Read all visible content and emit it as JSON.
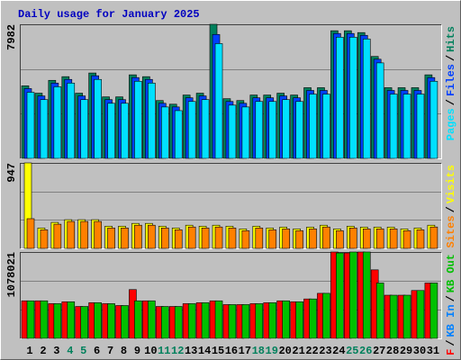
{
  "chart_data": [
    {
      "type": "bar",
      "title": "Daily usage for January 2025",
      "ylim": [
        0,
        7982
      ],
      "yticks": [
        7982
      ],
      "grid": true,
      "draw_order": "reverse",
      "series": [
        {
          "name": "Pages",
          "color": "#00e0ff",
          "values": [
            3936,
            3499,
            4264,
            4483,
            3499,
            4701,
            3280,
            3280,
            4592,
            4483,
            3061,
            2843,
            3389,
            3499,
            6834,
            3171,
            3061,
            3389,
            3389,
            3499,
            3389,
            3827,
            3827,
            7216,
            7216,
            7107,
            5685,
            3827,
            3827,
            3827,
            4592
          ]
        },
        {
          "name": "Files",
          "color": "#0040ff",
          "values": [
            4155,
            3718,
            4483,
            4702,
            3718,
            4920,
            3499,
            3499,
            4811,
            4702,
            3280,
            3062,
            3608,
            3718,
            7378,
            3390,
            3280,
            3608,
            3608,
            3718,
            3608,
            4046,
            4046,
            7435,
            7435,
            7326,
            5904,
            4046,
            4046,
            4046,
            4811
          ]
        },
        {
          "name": "Hits",
          "color": "#00805c",
          "values": [
            4319,
            3882,
            4647,
            4866,
            3882,
            5084,
            3663,
            3663,
            4975,
            4866,
            3444,
            3226,
            3772,
            3882,
            7982,
            3554,
            3444,
            3772,
            3772,
            3882,
            3772,
            4210,
            4210,
            7599,
            7599,
            7490,
            6068,
            4210,
            4210,
            4210,
            4975
          ]
        }
      ]
    },
    {
      "type": "bar",
      "ylim": [
        0,
        947
      ],
      "yticks": [
        947
      ],
      "grid": true,
      "draw_order": "reverse",
      "series": [
        {
          "name": "Sites",
          "color": "#ff8000",
          "values": [
            329,
            206,
            268,
            298,
            298,
            298,
            226,
            226,
            257,
            257,
            226,
            206,
            237,
            226,
            237,
            226,
            196,
            226,
            206,
            216,
            196,
            216,
            237,
            196,
            226,
            216,
            216,
            216,
            196,
            206,
            237
          ]
        },
        {
          "name": "Visits",
          "color": "#ffff00",
          "values": [
            947,
            226,
            288,
            318,
            318,
            318,
            246,
            246,
            277,
            277,
            246,
            226,
            257,
            246,
            257,
            246,
            216,
            246,
            226,
            236,
            216,
            236,
            257,
            216,
            246,
            236,
            236,
            236,
            216,
            226,
            257
          ]
        }
      ]
    },
    {
      "type": "bar",
      "ylim": [
        0,
        1078021
      ],
      "yticks": [
        1078021
      ],
      "grid": true,
      "draw_order": "forward",
      "categories": [
        "1",
        "2",
        "3",
        "4",
        "5",
        "6",
        "7",
        "8",
        "9",
        "10",
        "11",
        "12",
        "13",
        "14",
        "15",
        "16",
        "17",
        "18",
        "19",
        "20",
        "21",
        "22",
        "23",
        "24",
        "25",
        "26",
        "27",
        "28",
        "29",
        "30",
        "31"
      ],
      "highlight_categories": [
        "4",
        "5",
        "11",
        "12",
        "18",
        "19",
        "25",
        "26"
      ],
      "highlight_color": "#00805c",
      "series": [
        {
          "name": "KB F",
          "color": "#ff0000",
          "values": [
            468705,
            468705,
            433553,
            456988,
            398400,
            445270,
            433553,
            410118,
            609313,
            468705,
            398400,
            398400,
            433553,
            445270,
            468705,
            421835,
            421835,
            433553,
            445270,
            468705,
            456988,
            492140,
            562446,
            1078021,
            1066304,
            1078021,
            855385,
            539011,
            539011,
            597600,
            691338
          ]
        },
        {
          "name": "KB In",
          "color": "#0080ff",
          "values": [
            0,
            0,
            0,
            0,
            0,
            0,
            0,
            0,
            0,
            0,
            0,
            0,
            0,
            0,
            0,
            0,
            0,
            0,
            0,
            0,
            0,
            0,
            0,
            0,
            0,
            0,
            0,
            0,
            0,
            0,
            0
          ]
        },
        {
          "name": "KB Out",
          "color": "#00c000",
          "values": [
            468705,
            468705,
            433553,
            456988,
            398400,
            445270,
            433553,
            410118,
            468705,
            468705,
            398400,
            398400,
            433553,
            445270,
            468705,
            421835,
            421835,
            433553,
            445270,
            468705,
            456988,
            492140,
            562446,
            1066304,
            1078021,
            1078021,
            691338,
            539011,
            539011,
            597600,
            691338
          ]
        }
      ]
    }
  ]
}
